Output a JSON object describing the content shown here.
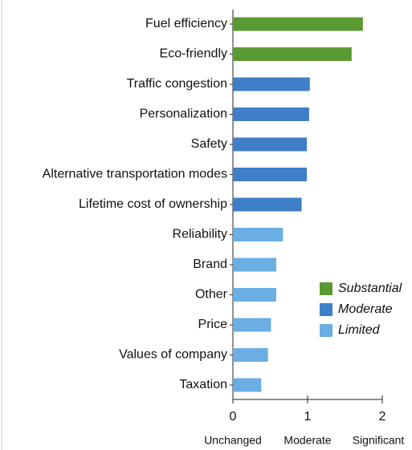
{
  "chart_data": {
    "type": "barh",
    "categories": [
      "Fuel efficiency",
      "Eco-friendly",
      "Traffic congestion",
      "Personalization",
      "Safety",
      "Alternative transportation modes",
      "Lifetime cost of ownership",
      "Reliability",
      "Brand",
      "Other",
      "Price",
      "Values of company",
      "Taxation"
    ],
    "series": [
      {
        "name": "Substantial",
        "color": "#5a9a32",
        "values": [
          1.74,
          1.59,
          null,
          null,
          null,
          null,
          null,
          null,
          null,
          null,
          null,
          null,
          null
        ]
      },
      {
        "name": "Moderate",
        "color": "#3f7fc8",
        "values": [
          null,
          null,
          1.03,
          1.02,
          0.99,
          0.99,
          0.92,
          null,
          null,
          null,
          null,
          null,
          null
        ]
      },
      {
        "name": "Limited",
        "color": "#6aaee4",
        "values": [
          null,
          null,
          null,
          null,
          null,
          null,
          null,
          0.67,
          0.58,
          0.58,
          0.51,
          0.47,
          0.38
        ]
      }
    ],
    "xlim": [
      0,
      2
    ],
    "xticks": [
      0,
      1,
      2
    ],
    "xtick_captions": [
      "Unchanged",
      "Moderate",
      "Significant"
    ],
    "legend": "lower right"
  }
}
